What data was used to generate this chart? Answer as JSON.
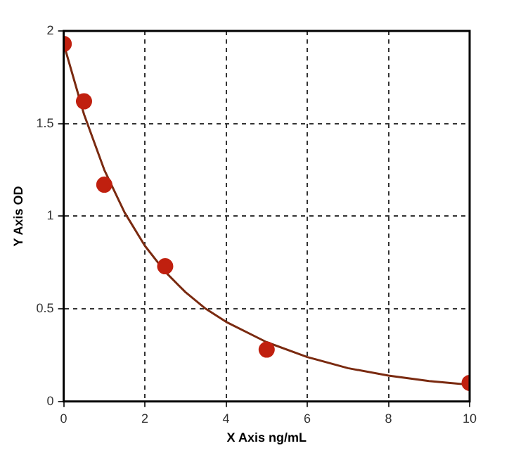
{
  "chart_data": {
    "type": "scatter",
    "xlabel": "X Axis ng/mL",
    "ylabel": "Y Axis OD",
    "xlim": [
      0,
      10
    ],
    "xticks": [
      0,
      2,
      4,
      6,
      8,
      10
    ],
    "ylim": [
      0,
      2
    ],
    "yticks": [
      0,
      0.5,
      1,
      1.5,
      2
    ],
    "grid": true,
    "legend": false,
    "series": [
      {
        "color": "#c0200f",
        "marker": "circle",
        "x": [
          0,
          0.5,
          1,
          2.5,
          5,
          10
        ],
        "values": [
          1.93,
          1.62,
          1.17,
          0.73,
          0.28,
          0.1
        ]
      },
      {
        "type": "line",
        "color": "#7a2a10",
        "marker": "none",
        "line_style": "solid",
        "x": [
          0,
          0.5,
          1,
          1.5,
          2,
          2.5,
          3,
          3.5,
          4,
          5,
          6,
          7,
          8,
          9,
          10
        ],
        "values": [
          1.93,
          1.55,
          1.25,
          1.02,
          0.84,
          0.7,
          0.59,
          0.5,
          0.43,
          0.32,
          0.24,
          0.18,
          0.14,
          0.11,
          0.09
        ]
      }
    ]
  }
}
